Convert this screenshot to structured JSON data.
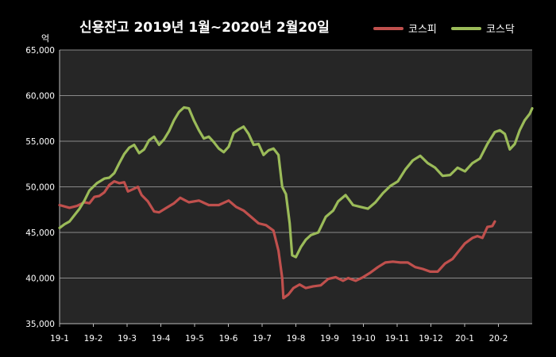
{
  "chart_data": {
    "type": "line",
    "title": "신용잔고 2019년 1월~2020년 2월20일",
    "yunit": "억",
    "ylim": [
      35000,
      65000
    ],
    "yticks": [
      35000,
      40000,
      45000,
      50000,
      55000,
      60000,
      65000
    ],
    "ytick_labels": [
      "35,000",
      "40,000",
      "45,000",
      "50,000",
      "55,000",
      "60,000",
      "65,000"
    ],
    "x_labels": [
      "19-1",
      "19-2",
      "19-3",
      "19-4",
      "19-5",
      "19-6",
      "19-7",
      "19-8",
      "19-9",
      "19-10",
      "19-11",
      "19-12",
      "20-1",
      "20-2"
    ],
    "grid": true,
    "legend_position": "top-right",
    "colors": {
      "kospi": "#c0504d",
      "kosdaq": "#9bbb59",
      "background": "#000000",
      "plot_background": "#262626"
    },
    "series": [
      {
        "name": "코스피",
        "color": "#c0504d",
        "points": [
          [
            0.0,
            48000
          ],
          [
            0.4,
            47700
          ],
          [
            0.7,
            47900
          ],
          [
            1.0,
            48300
          ],
          [
            1.2,
            48200
          ],
          [
            1.4,
            48900
          ],
          [
            1.6,
            49000
          ],
          [
            1.8,
            49400
          ],
          [
            2.0,
            50200
          ],
          [
            2.2,
            50600
          ],
          [
            2.4,
            50400
          ],
          [
            2.6,
            50500
          ],
          [
            2.75,
            49500
          ],
          [
            3.0,
            49800
          ],
          [
            3.15,
            50000
          ],
          [
            3.3,
            49100
          ],
          [
            3.55,
            48400
          ],
          [
            3.8,
            47300
          ],
          [
            4.0,
            47200
          ],
          [
            4.3,
            47700
          ],
          [
            4.6,
            48200
          ],
          [
            4.85,
            48800
          ],
          [
            5.2,
            48300
          ],
          [
            5.6,
            48500
          ],
          [
            6.0,
            48000
          ],
          [
            6.4,
            48000
          ],
          [
            6.8,
            48500
          ],
          [
            7.1,
            47800
          ],
          [
            7.4,
            47400
          ],
          [
            7.7,
            46700
          ],
          [
            8.0,
            46000
          ],
          [
            8.3,
            45800
          ],
          [
            8.6,
            45200
          ],
          [
            8.8,
            43000
          ],
          [
            8.95,
            40000
          ],
          [
            9.0,
            37800
          ],
          [
            9.2,
            38200
          ],
          [
            9.4,
            38900
          ],
          [
            9.65,
            39300
          ],
          [
            9.9,
            38900
          ],
          [
            10.2,
            39100
          ],
          [
            10.5,
            39200
          ],
          [
            10.8,
            39900
          ],
          [
            11.1,
            40100
          ],
          [
            11.4,
            39700
          ],
          [
            11.6,
            40000
          ],
          [
            11.9,
            39700
          ],
          [
            12.2,
            40100
          ],
          [
            12.5,
            40600
          ],
          [
            12.8,
            41200
          ],
          [
            13.1,
            41700
          ],
          [
            13.4,
            41800
          ],
          [
            13.7,
            41700
          ],
          [
            14.0,
            41700
          ],
          [
            14.3,
            41200
          ],
          [
            14.6,
            41000
          ],
          [
            14.9,
            40700
          ],
          [
            15.2,
            40700
          ],
          [
            15.5,
            41600
          ],
          [
            15.8,
            42100
          ],
          [
            16.0,
            42800
          ],
          [
            16.3,
            43800
          ],
          [
            16.6,
            44400
          ],
          [
            16.8,
            44600
          ],
          [
            17.0,
            44400
          ],
          [
            17.2,
            45600
          ],
          [
            17.4,
            45700
          ],
          [
            17.5,
            46200
          ]
        ]
      },
      {
        "name": "코스닥",
        "color": "#9bbb59",
        "points": [
          [
            0.0,
            45500
          ],
          [
            0.2,
            45900
          ],
          [
            0.4,
            46200
          ],
          [
            0.6,
            46900
          ],
          [
            0.8,
            47600
          ],
          [
            1.0,
            48500
          ],
          [
            1.2,
            49600
          ],
          [
            1.5,
            50400
          ],
          [
            1.8,
            50900
          ],
          [
            2.0,
            51000
          ],
          [
            2.2,
            51500
          ],
          [
            2.4,
            52600
          ],
          [
            2.6,
            53600
          ],
          [
            2.8,
            54300
          ],
          [
            3.0,
            54600
          ],
          [
            3.2,
            53700
          ],
          [
            3.4,
            54100
          ],
          [
            3.6,
            55100
          ],
          [
            3.8,
            55500
          ],
          [
            4.0,
            54600
          ],
          [
            4.2,
            55200
          ],
          [
            4.4,
            56100
          ],
          [
            4.6,
            57300
          ],
          [
            4.8,
            58200
          ],
          [
            5.0,
            58700
          ],
          [
            5.2,
            58600
          ],
          [
            5.4,
            57300
          ],
          [
            5.6,
            56200
          ],
          [
            5.8,
            55300
          ],
          [
            6.0,
            55500
          ],
          [
            6.2,
            54900
          ],
          [
            6.4,
            54200
          ],
          [
            6.6,
            53800
          ],
          [
            6.8,
            54400
          ],
          [
            7.0,
            55900
          ],
          [
            7.2,
            56300
          ],
          [
            7.4,
            56600
          ],
          [
            7.6,
            55800
          ],
          [
            7.8,
            54600
          ],
          [
            8.0,
            54700
          ],
          [
            8.2,
            53500
          ],
          [
            8.4,
            54000
          ],
          [
            8.6,
            54200
          ],
          [
            8.8,
            53500
          ],
          [
            8.95,
            50000
          ],
          [
            9.1,
            49200
          ],
          [
            9.25,
            46000
          ],
          [
            9.35,
            42500
          ],
          [
            9.5,
            42300
          ],
          [
            9.7,
            43400
          ],
          [
            9.9,
            44200
          ],
          [
            10.1,
            44700
          ],
          [
            10.4,
            45000
          ],
          [
            10.7,
            46700
          ],
          [
            11.0,
            47400
          ],
          [
            11.2,
            48400
          ],
          [
            11.5,
            49100
          ],
          [
            11.8,
            48000
          ],
          [
            12.1,
            47800
          ],
          [
            12.4,
            47600
          ],
          [
            12.7,
            48300
          ],
          [
            13.0,
            49300
          ],
          [
            13.3,
            50100
          ],
          [
            13.6,
            50600
          ],
          [
            13.9,
            51900
          ],
          [
            14.2,
            52900
          ],
          [
            14.5,
            53400
          ],
          [
            14.8,
            52600
          ],
          [
            15.1,
            52100
          ],
          [
            15.4,
            51200
          ],
          [
            15.7,
            51300
          ],
          [
            16.0,
            52100
          ],
          [
            16.3,
            51700
          ],
          [
            16.6,
            52600
          ],
          [
            16.9,
            53100
          ],
          [
            17.2,
            54700
          ],
          [
            17.5,
            56000
          ],
          [
            17.7,
            56200
          ],
          [
            17.9,
            55800
          ],
          [
            18.1,
            54100
          ],
          [
            18.3,
            54700
          ],
          [
            18.5,
            56200
          ],
          [
            18.7,
            57300
          ],
          [
            18.9,
            58000
          ],
          [
            19.0,
            58600
          ]
        ]
      }
    ]
  }
}
